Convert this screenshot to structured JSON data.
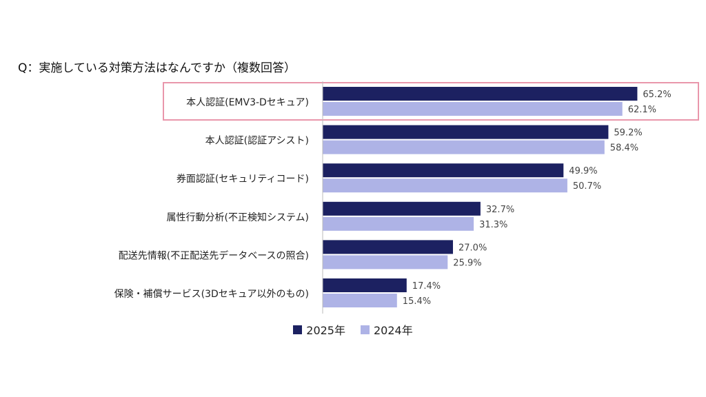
{
  "question": "Q：実施している対策方法はなんですか（複数回答）",
  "colors": {
    "2025": "#1c2161",
    "2024": "#aeb3e6",
    "highlight": "#e996ab",
    "axis": "#bbbbbb"
  },
  "chart_data": {
    "type": "bar",
    "orientation": "horizontal",
    "title": "Q：実施している対策方法はなんですか（複数回答）",
    "categories": [
      "本人認証(EMV3-Dセキュア)",
      "本人認証(認証アシスト)",
      "券面認証(セキュリティコード)",
      "属性行動分析(不正検知システム)",
      "配送先情報(不正配送先データベースの照合)",
      "保険・補償サービス(3Dセキュア以外のもの)"
    ],
    "series": [
      {
        "name": "2025年",
        "values": [
          65.2,
          59.2,
          49.9,
          32.7,
          27.0,
          17.4
        ],
        "labels": [
          "65.2%",
          "59.2%",
          "49.9%",
          "32.7%",
          "27.0%",
          "17.4%"
        ]
      },
      {
        "name": "2024年",
        "values": [
          62.1,
          58.4,
          50.7,
          31.3,
          25.9,
          15.4
        ],
        "labels": [
          "62.1%",
          "58.4%",
          "50.7%",
          "31.3%",
          "25.9%",
          "15.4%"
        ]
      }
    ],
    "xlim": [
      0,
      100
    ],
    "highlighted_category": 0,
    "legend_position": "bottom",
    "grid": false
  }
}
